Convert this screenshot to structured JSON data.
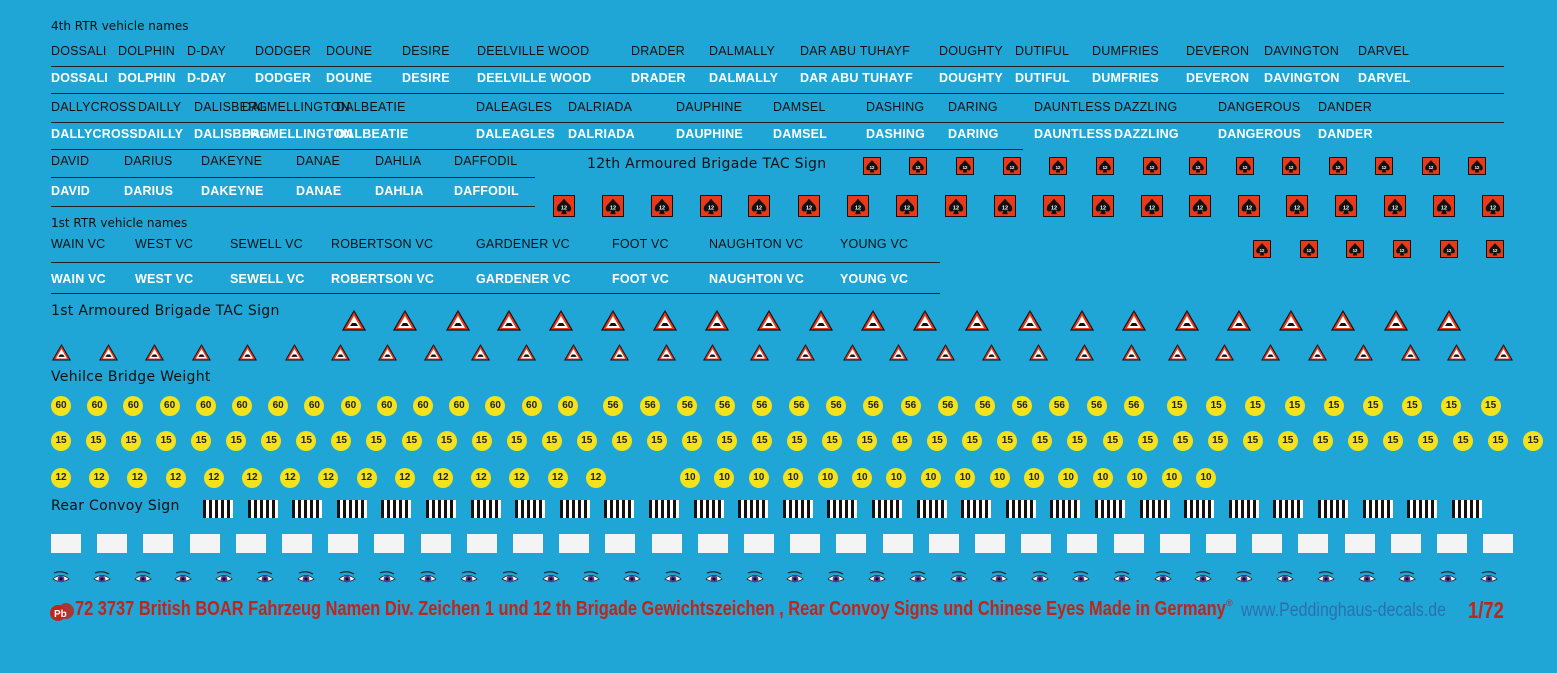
{
  "sections": {
    "rtr4": "4th RTR vehicle names",
    "rtr1": "1st RTR vehicle names",
    "brig12": "12th Armoured Brigade TAC Sign",
    "brig1": "1st Armoured Brigade TAC Sign",
    "bridge": "Vehilce Bridge Weight",
    "convoy": "Rear Convoy Sign"
  },
  "names_4rtr_a": [
    "DOSSALI",
    "DOLPHIN",
    "D-DAY",
    "DODGER",
    "DOUNE",
    "DESIRE",
    "DEELVILLE WOOD",
    "DRADER",
    "DALMALLY",
    "DAR ABU TUHAYF",
    "DOUGHTY",
    "DUTIFUL",
    "DUMFRIES",
    "DEVERON",
    "DAVINGTON",
    "DARVEL"
  ],
  "names_4rtr_b": [
    "DALLYCROSS",
    "DAILLY",
    "DALISBERG",
    "DALMELLINGTON",
    "DALBEATIE",
    "DALEAGLES",
    "DALRIADA",
    "DAUPHINE",
    "DAMSEL",
    "DASHING",
    "DARING",
    "DAUNTLESS",
    "DAZZLING",
    "DANGEROUS",
    "DANDER"
  ],
  "names_4rtr_c": [
    "DAVID",
    "DARIUS",
    "DAKEYNE",
    "DANAE",
    "DAHLIA",
    "DAFFODIL"
  ],
  "names_1rtr": [
    "WAIN VC",
    "WEST VC",
    "SEWELL VC",
    "ROBERTSON VC",
    "GARDENER VC",
    "FOOT VC",
    "NAUGHTON VC",
    "YOUNG VC"
  ],
  "badge_12": "12",
  "bridge_weights": {
    "row1": [
      "60",
      "60",
      "60",
      "60",
      "60",
      "60",
      "60",
      "60",
      "60",
      "60",
      "60",
      "60",
      "60",
      "60",
      "60",
      "56",
      "56",
      "56",
      "56",
      "56",
      "56",
      "56",
      "56",
      "56",
      "56",
      "56",
      "56",
      "56",
      "56",
      "56",
      "15",
      "15",
      "15",
      "15",
      "15",
      "15",
      "15",
      "15",
      "15"
    ],
    "row2": [
      "15",
      "15",
      "15",
      "15",
      "15",
      "15",
      "15",
      "15",
      "15",
      "15",
      "15",
      "15",
      "15",
      "15",
      "15",
      "15",
      "15",
      "15",
      "15",
      "15",
      "15",
      "15",
      "15",
      "15",
      "15",
      "15",
      "15",
      "15",
      "15",
      "15",
      "15",
      "15",
      "15",
      "15",
      "15",
      "15",
      "15",
      "15",
      "15",
      "15",
      "15",
      "15",
      "15"
    ],
    "row3": [
      "12",
      "12",
      "12",
      "12",
      "12",
      "12",
      "12",
      "12",
      "12",
      "12",
      "12",
      "12",
      "12",
      "12",
      "12",
      "10",
      "10",
      "10",
      "10",
      "10",
      "10",
      "10",
      "10",
      "10",
      "10",
      "10",
      "10",
      "10",
      "10",
      "10",
      "10"
    ]
  },
  "colors": {
    "background": "#1fa6d6",
    "tac12_square": "#e8391a",
    "tac1_triangle": "#e8391a",
    "bridge_disc": "#f3e21c",
    "footer_text": "#c0241a",
    "footer_url": "#2d6fae"
  },
  "icons": [
    "peddinghaus-logo",
    "tac-sign-12-spade",
    "tac-sign-1-triangle",
    "rear-convoy-stripes",
    "chinese-eye"
  ],
  "footer": {
    "title": "72 3737 British BOAR Fahrzeug Namen Div. Zeichen 1 und 12 th Brigade Gewichtszeichen , Rear Convoy Signs und Chinese Eyes   Made in Germany",
    "registered": "®",
    "url": "www.Peddinghaus-decals.de",
    "scale": "1/72"
  }
}
